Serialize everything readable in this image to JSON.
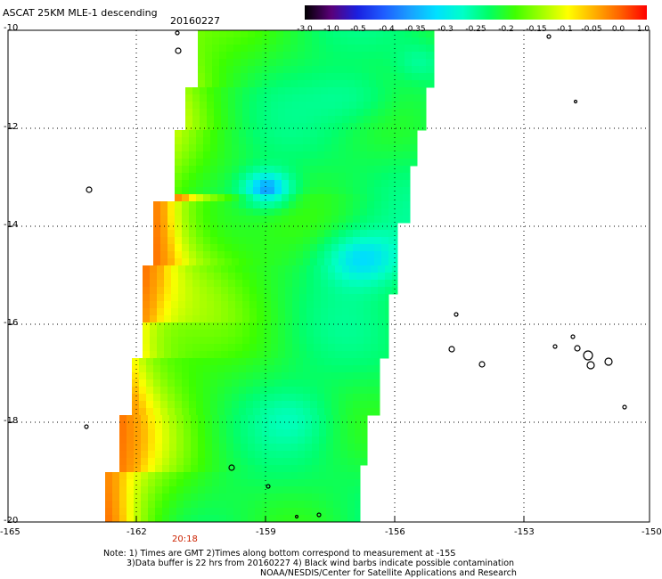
{
  "header": {
    "title": "ASCAT 25KM MLE-1 descending",
    "date": "20160227"
  },
  "colorbar": {
    "labels": [
      "-3.0",
      "-1.0",
      "-0.5",
      "-0.4",
      "-0.35",
      "-0.3",
      "-0.25",
      "-0.2",
      "-0.15",
      "-0.1",
      "-0.05",
      "0.0",
      "1.0"
    ],
    "colors": [
      "#000000",
      "#5a0078",
      "#1a20e0",
      "#1e5cff",
      "#1aa0ff",
      "#00e0ff",
      "#00ffc8",
      "#00ff64",
      "#40ff00",
      "#a0ff00",
      "#ffff00",
      "#ffb000",
      "#ff6000",
      "#ff0000"
    ]
  },
  "map": {
    "lat_labels": [
      "-10",
      "-12",
      "-14",
      "-16",
      "-18",
      "-20"
    ],
    "lon_labels": [
      "-165",
      "-162",
      "-159",
      "-156",
      "-153",
      "-150"
    ],
    "orbit_time": "20:18"
  },
  "notes": [
    "Note: 1) Times are GMT 2)Times along bottom correspond to measurement at -15S",
    "3)Data buffer is 22 hrs from 20160227 4) Black wind barbs indicate possible contamination",
    "NOAA/NESDIS/Center for Satellite Applications and Research"
  ]
}
